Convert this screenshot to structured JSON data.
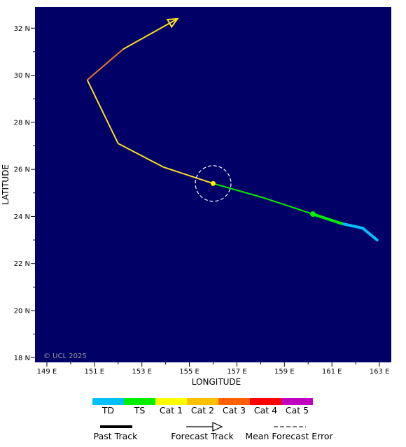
{
  "map": {
    "background": "#000066",
    "lon_range": [
      148.5,
      163.5
    ],
    "lat_range": [
      17.8,
      32.9
    ],
    "x_ticks": [
      149,
      151,
      153,
      155,
      157,
      159,
      161,
      163
    ],
    "x_tick_labels": [
      "149 E",
      "151 E",
      "153 E",
      "155 E",
      "157 E",
      "159 E",
      "161 E",
      "163 E"
    ],
    "y_ticks": [
      18,
      20,
      22,
      24,
      26,
      28,
      30,
      32
    ],
    "y_tick_labels": [
      "18 N",
      "20 N",
      "22 N",
      "24 N",
      "26 N",
      "28 N",
      "30 N",
      "32 N"
    ],
    "xlabel": "LONGITUDE",
    "ylabel": "LATITUDE",
    "credit": "© UCL 2025"
  },
  "chart_data": {
    "type": "scatter",
    "past_track": [
      {
        "lon": 162.9,
        "lat": 23.0,
        "category": "TD"
      },
      {
        "lon": 162.3,
        "lat": 23.5,
        "category": "TD"
      },
      {
        "lon": 161.4,
        "lat": 23.7,
        "category": "TS"
      },
      {
        "lon": 160.2,
        "lat": 24.1,
        "category": "TS"
      }
    ],
    "current_position": {
      "lon": 156.0,
      "lat": 25.4,
      "marker_size": "large"
    },
    "observed_marker": {
      "lon": 160.2,
      "lat": 24.1
    },
    "forecast_track": [
      {
        "lon": 160.2,
        "lat": 24.1,
        "category": "TS"
      },
      {
        "lon": 158.1,
        "lat": 24.8,
        "category": "TS"
      },
      {
        "lon": 156.0,
        "lat": 25.4,
        "category": "TS"
      },
      {
        "lon": 153.9,
        "lat": 26.1,
        "category": "Cat 1"
      },
      {
        "lon": 152.0,
        "lat": 27.1,
        "category": "Cat 1"
      },
      {
        "lon": 150.7,
        "lat": 29.8,
        "category": "Cat 1"
      },
      {
        "lon": 152.2,
        "lat": 31.1,
        "category": "Cat 3"
      },
      {
        "lon": 154.5,
        "lat": 32.4,
        "category": "Cat 1"
      }
    ],
    "forecast_error_circle": {
      "lon": 156.0,
      "lat": 25.4,
      "radius_deg": 0.75
    }
  },
  "legend": {
    "categories": [
      {
        "name": "TD",
        "color": "#00c0ff"
      },
      {
        "name": "TS",
        "color": "#00ee00"
      },
      {
        "name": "Cat 1",
        "color": "#ffff00"
      },
      {
        "name": "Cat 2",
        "color": "#ffc000"
      },
      {
        "name": "Cat 3",
        "color": "#ff6000"
      },
      {
        "name": "Cat 4",
        "color": "#ff0000"
      },
      {
        "name": "Cat 5",
        "color": "#c000c0"
      }
    ],
    "past_track_label": "Past Track",
    "forecast_track_label": "Forecast Track",
    "error_label": "Mean Forecast Error"
  },
  "colors": {
    "past_TD": "#00c0ff",
    "past_TS": "#00ee00",
    "fc_TS": "#00ee00",
    "fc_Cat1": "#ffdd22",
    "fc_Cat3": "#ee7722",
    "marker_current": "#ffee00",
    "error_circle": "#ffffff"
  }
}
